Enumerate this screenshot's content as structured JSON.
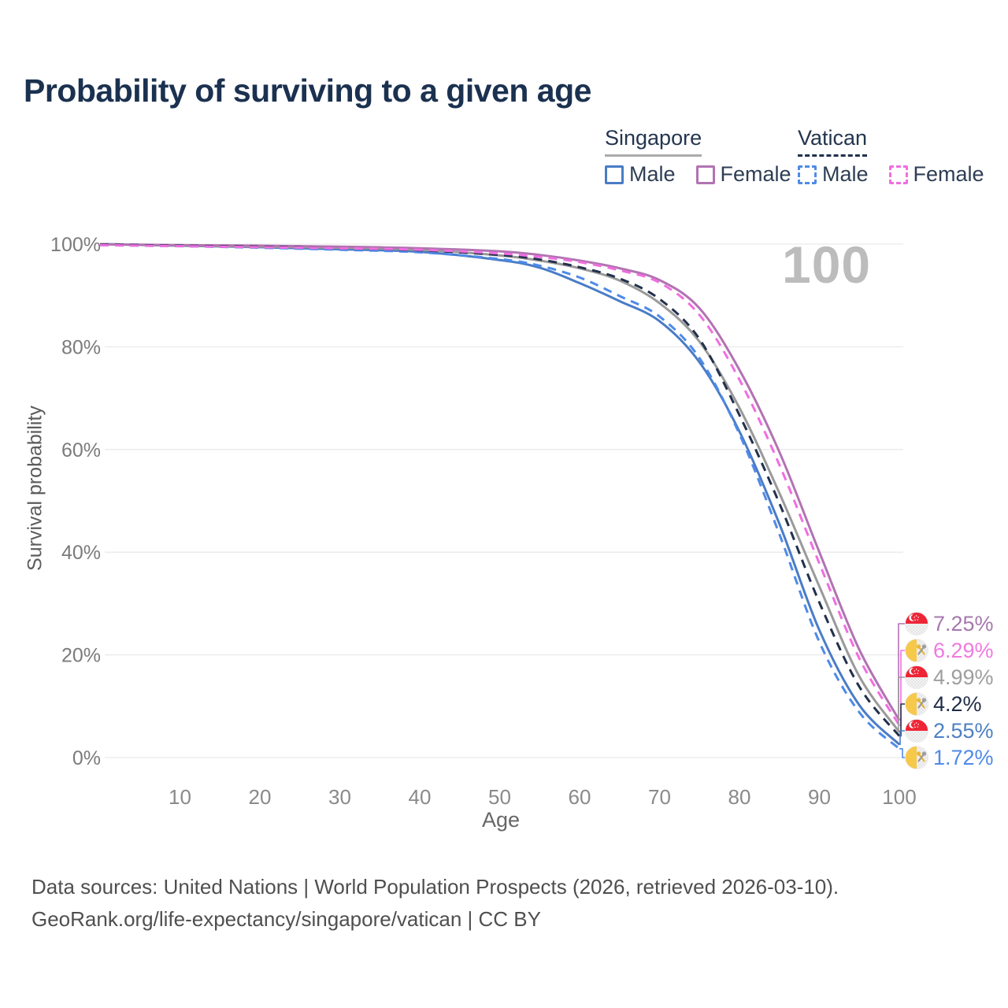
{
  "header": {
    "title": "Probability of surviving to a given age"
  },
  "legend": {
    "groups": [
      {
        "name": "Singapore",
        "dashed": false,
        "underline_color": "#ababab",
        "items": [
          {
            "label": "Male",
            "color": "#4a7cc6"
          },
          {
            "label": "Female",
            "color": "#b273b2"
          }
        ]
      },
      {
        "name": "Vatican",
        "dashed": true,
        "underline_color": "#22304d",
        "items": [
          {
            "label": "Male",
            "color": "#4f8ae8"
          },
          {
            "label": "Female",
            "color": "#f06ee0"
          }
        ]
      }
    ]
  },
  "watermark": "100",
  "chart_data": {
    "type": "line",
    "title": "Probability of surviving to a given age",
    "xlabel": "Age",
    "ylabel": "Survival probability",
    "xlim": [
      0,
      100
    ],
    "ylim": [
      0,
      100
    ],
    "grid": "horizontal",
    "x_ticks": [
      10,
      20,
      30,
      40,
      50,
      60,
      70,
      80,
      90,
      100
    ],
    "y_ticks": [
      {
        "pct": 0,
        "label": "0%"
      },
      {
        "pct": 20,
        "label": "20%"
      },
      {
        "pct": 40,
        "label": "40%"
      },
      {
        "pct": 60,
        "label": "60%"
      },
      {
        "pct": 80,
        "label": "80%"
      },
      {
        "pct": 100,
        "label": "100%"
      }
    ],
    "ages": [
      0,
      10,
      20,
      30,
      40,
      50,
      55,
      60,
      65,
      70,
      75,
      80,
      85,
      90,
      95,
      100
    ],
    "series": [
      {
        "name": "Singapore Male",
        "country": "Singapore",
        "sex": "Male",
        "color": "#4a7cc6",
        "dashed": false,
        "values": [
          100,
          99.7,
          99.4,
          99.0,
          98.5,
          96.9,
          95.4,
          92.4,
          88.9,
          85.0,
          77.0,
          63.5,
          45.5,
          24.8,
          10.2,
          2.55
        ]
      },
      {
        "name": "Singapore Both sexes",
        "country": "Singapore",
        "sex": "Both",
        "color": "#9a9a9a",
        "dashed": false,
        "values": [
          100,
          99.7,
          99.5,
          99.3,
          98.9,
          97.8,
          96.8,
          95.3,
          92.9,
          88.5,
          81.0,
          68.1,
          51.5,
          33.3,
          15.8,
          4.99
        ]
      },
      {
        "name": "Singapore Female",
        "country": "Singapore",
        "sex": "Female",
        "color": "#b273b2",
        "dashed": false,
        "values": [
          100,
          99.8,
          99.7,
          99.5,
          99.2,
          98.6,
          97.9,
          96.8,
          95.3,
          93.0,
          87.5,
          75.5,
          59.5,
          40.0,
          21.0,
          7.25
        ]
      },
      {
        "name": "Vatican Male",
        "country": "Vatican",
        "sex": "Male",
        "color": "#4f8ae8",
        "dashed": true,
        "values": [
          99.8,
          99.6,
          99.3,
          98.9,
          98.4,
          97.1,
          95.8,
          93.5,
          89.9,
          85.9,
          77.8,
          63.0,
          43.5,
          22.5,
          8.8,
          1.72
        ]
      },
      {
        "name": "Vatican Both sexes",
        "country": "Vatican",
        "sex": "Both",
        "color": "#22304d",
        "dashed": true,
        "values": [
          99.9,
          99.7,
          99.5,
          99.2,
          98.8,
          97.9,
          97.0,
          95.5,
          93.3,
          89.3,
          81.5,
          66.7,
          49.5,
          30.2,
          13.8,
          4.2
        ]
      },
      {
        "name": "Vatican Female",
        "country": "Vatican",
        "sex": "Female",
        "color": "#f06ee0",
        "dashed": true,
        "values": [
          99.8,
          99.6,
          99.4,
          99.2,
          98.9,
          98.2,
          97.5,
          96.5,
          94.9,
          92.5,
          86.2,
          73.6,
          57.0,
          37.8,
          19.3,
          6.29
        ]
      }
    ],
    "end_labels": [
      {
        "text": "7.25%",
        "color": "#a678ae",
        "flag": "singapore",
        "series": "Singapore Female",
        "pct": 7.25
      },
      {
        "text": "6.29%",
        "color": "#f07ae0",
        "flag": "vatican",
        "series": "Vatican Female",
        "pct": 6.29
      },
      {
        "text": "4.99%",
        "color": "#9e9e9e",
        "flag": "singapore",
        "series": "Singapore Both sexes",
        "pct": 4.99
      },
      {
        "text": "4.2%",
        "color": "#1f2c45",
        "flag": "vatican",
        "series": "Vatican Both sexes",
        "pct": 4.2
      },
      {
        "text": "2.55%",
        "color": "#4d7fc4",
        "flag": "singapore",
        "series": "Singapore Male",
        "pct": 2.55
      },
      {
        "text": "1.72%",
        "color": "#4f8ae8",
        "flag": "vatican",
        "series": "Vatican Male",
        "pct": 1.72
      }
    ]
  },
  "footer": {
    "line1": "Data sources: United Nations | World Population Prospects (2026, retrieved 2026-03-10).",
    "line2": "GeoRank.org/life-expectancy/singapore/vatican | CC BY"
  }
}
